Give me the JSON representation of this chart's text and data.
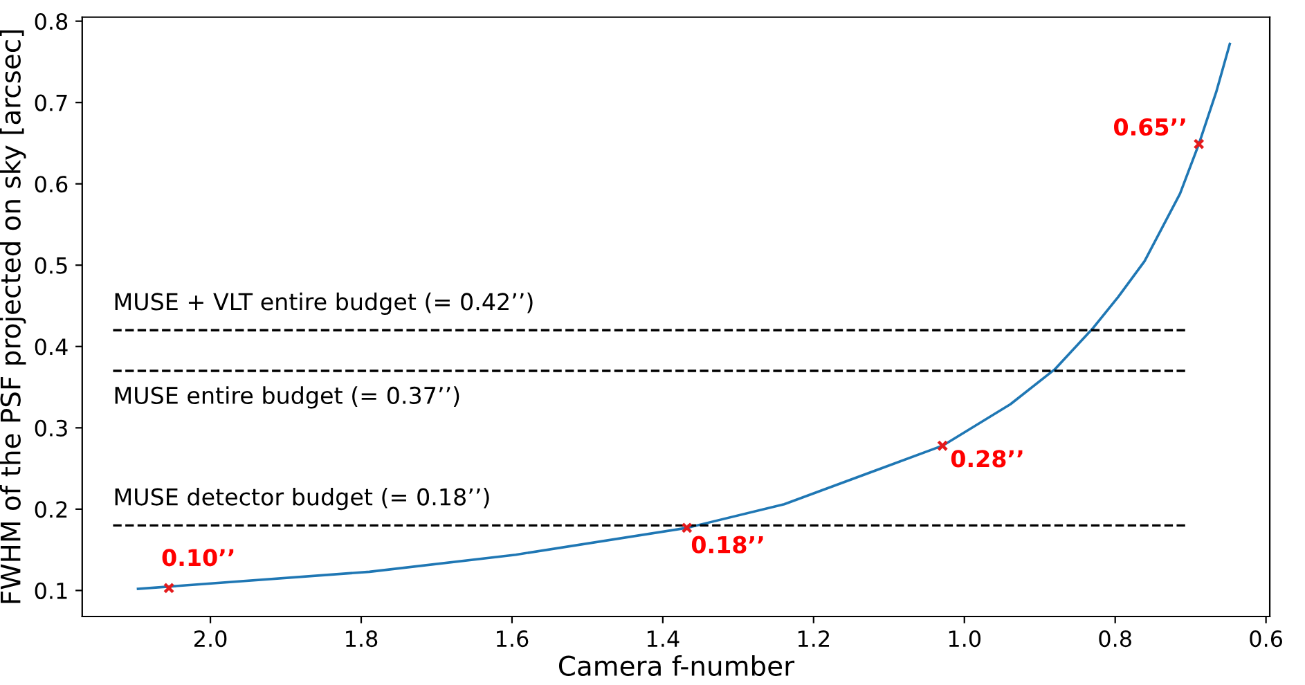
{
  "chart_data": {
    "type": "line",
    "xlabel": "Camera f-number",
    "ylabel": "FWHM of the PSF projected on sky [arcsec]",
    "xlim": [
      2.17,
      0.595
    ],
    "xticks": [
      {
        "value": 2.0,
        "label": "2.0"
      },
      1.8,
      1.6,
      1.4,
      1.2,
      {
        "value": 1.0,
        "label": "1.0"
      },
      0.8,
      0.6
    ],
    "ylim": [
      0.068,
      0.805
    ],
    "yticks": [
      0.1,
      0.2,
      0.3,
      0.4,
      0.5,
      0.6,
      0.7,
      0.8
    ],
    "grid": false,
    "legend": false,
    "series": [
      {
        "color": "#1f77b4",
        "x": [
          2.096,
          1.789,
          1.595,
          1.368,
          1.239,
          1.029,
          0.939,
          0.88,
          0.829,
          0.796,
          0.761,
          0.714,
          0.689,
          0.666,
          0.648
        ],
        "values": [
          0.102,
          0.123,
          0.144,
          0.177,
          0.206,
          0.278,
          0.329,
          0.372,
          0.423,
          0.461,
          0.505,
          0.588,
          0.649,
          0.713,
          0.772
        ]
      },
      {
        "type": "scatter",
        "color": "#e41a1c",
        "marker": "cross",
        "x": [
          2.055,
          1.368,
          1.029,
          0.689
        ],
        "values": [
          0.103,
          0.177,
          0.278,
          0.649
        ]
      }
    ],
    "ref_lines": [
      {
        "axis": "y",
        "value": 0.42,
        "label": "MUSE + VLT entire budget (= 0.42’’)",
        "color": "#000000",
        "line_style": "dashed"
      },
      {
        "axis": "y",
        "value": 0.37,
        "label": "MUSE entire budget (= 0.37’’)",
        "color": "#000000",
        "line_style": "dashed"
      },
      {
        "axis": "y",
        "value": 0.18,
        "label": "MUSE detector budget (= 0.18’’)",
        "color": "#000000",
        "line_style": "dashed"
      }
    ],
    "annotations": [
      {
        "text": "0.10’’",
        "x": 2.055,
        "y": 0.103
      },
      {
        "text": "0.18’’",
        "x": 1.368,
        "y": 0.177
      },
      {
        "text": "0.28’’",
        "x": 1.029,
        "y": 0.278
      },
      {
        "text": "0.65’’",
        "x": 0.689,
        "y": 0.649
      }
    ]
  }
}
